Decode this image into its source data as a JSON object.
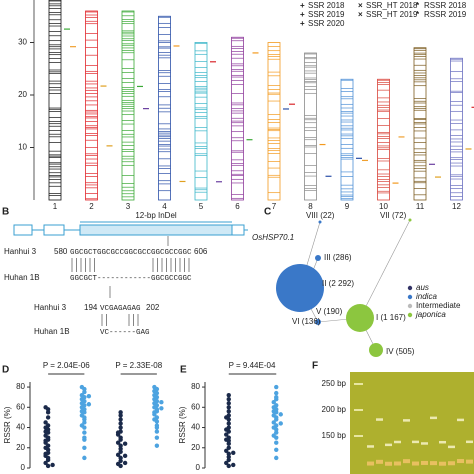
{
  "panel_a": {
    "label": "A",
    "yticks": [
      30,
      20,
      10
    ],
    "chromosomes": [
      "1",
      "2",
      "3",
      "4",
      "5",
      "6",
      "7",
      "8",
      "9",
      "10",
      "11",
      "12"
    ],
    "chromosome_lengths": [
      43,
      36,
      36,
      35,
      30,
      31,
      30,
      28,
      23,
      23,
      29,
      27
    ],
    "chromosome_colors": [
      "#111111",
      "#e0262b",
      "#3aa935",
      "#2a4fa8",
      "#3bb6c9",
      "#8f3b9c",
      "#f39a1f",
      "#8a8a8a",
      "#4d8fd6",
      "#d9443a",
      "#7a5a1e",
      "#6a6fc0"
    ],
    "legend": [
      {
        "name": "SSR 2018",
        "color": "#3aa935",
        "symbol": "+"
      },
      {
        "name": "SSR_HT 2018",
        "color": "#6a3fa0",
        "symbol": "×"
      },
      {
        "name": "RSSR 2018",
        "color": "#f0a030",
        "symbol": "*"
      },
      {
        "name": "SSR 2019",
        "color": "#2a4fa8",
        "symbol": "+"
      },
      {
        "name": "SSR_HT 2019",
        "color": "#f39a1f",
        "symbol": "×"
      },
      {
        "name": "RSSR 2019",
        "color": "#d9262b",
        "symbol": "*"
      },
      {
        "name": "SSR 2020",
        "color": "#e0a020",
        "symbol": "+"
      }
    ]
  },
  "panel_b": {
    "label": "B",
    "indel": "12-bp InDel",
    "gene": "OsHSP70.1",
    "seq1": {
      "name": "Hanhui 3",
      "start": "580",
      "seq": "GGCGCTGGCGCCGGCGCCGGCGCCGGC",
      "end": "606"
    },
    "seq2": {
      "name": "Huhan 1B",
      "seq": "GGCGCT------------GGCGCCGGC"
    },
    "prot1": {
      "name": "Hanhui 3",
      "start": "194",
      "seq": "VCGAGAGAG",
      "end": "202"
    },
    "prot2": {
      "name": "Huhan 1B",
      "seq": "VC------GAG"
    }
  },
  "panel_c": {
    "label": "C",
    "nodes": [
      "VIII (22)",
      "VII (72)",
      "III (286)",
      "II (2 292)",
      "V (190)",
      "VI (136)",
      "I (1 167)",
      "IV (505)"
    ],
    "legend": [
      {
        "name": "aus",
        "color": "#333366"
      },
      {
        "name": "indica",
        "color": "#3a78c8"
      },
      {
        "name": "Intermediate",
        "color": "#bbbbbb"
      },
      {
        "name": "japonica",
        "color": "#8cc63f"
      }
    ]
  },
  "panel_d": {
    "label": "D",
    "ylabel": "RSSR (%)",
    "ylim": [
      0,
      85
    ],
    "yticks": [
      0,
      20,
      40,
      60,
      80
    ],
    "pvalues": [
      "P = 2.04E-06",
      "P = 2.33E-08"
    ],
    "groups": [
      {
        "color": "#1b2a4a",
        "values": [
          2,
          5,
          8,
          10,
          12,
          15,
          18,
          20,
          22,
          25,
          28,
          30,
          32,
          35,
          38,
          40,
          42,
          45,
          50,
          55,
          58,
          60,
          3,
          14,
          27,
          36
        ]
      },
      {
        "color": "#4da3e0",
        "values": [
          20,
          28,
          35,
          40,
          45,
          48,
          50,
          52,
          55,
          58,
          60,
          62,
          64,
          66,
          68,
          70,
          72,
          75,
          78,
          80,
          10,
          42,
          56,
          63,
          71,
          30
        ]
      },
      {
        "color": "#1b2a4a",
        "values": [
          2,
          4,
          7,
          10,
          13,
          16,
          19,
          22,
          25,
          28,
          30,
          33,
          36,
          40,
          44,
          48,
          52,
          55,
          5,
          12,
          24,
          35
        ]
      },
      {
        "color": "#4da3e0",
        "values": [
          22,
          30,
          36,
          42,
          46,
          50,
          53,
          56,
          58,
          60,
          62,
          64,
          66,
          68,
          70,
          72,
          74,
          76,
          78,
          80,
          40,
          55,
          65,
          48,
          59
        ]
      }
    ]
  },
  "panel_e": {
    "label": "E",
    "ylabel": "RSSR (%)",
    "ylim": [
      0,
      85
    ],
    "yticks": [
      0,
      20,
      40,
      60,
      80
    ],
    "pvalue": "P = 9.44E-04",
    "groups": [
      {
        "color": "#1b2a4a",
        "values": [
          2,
          5,
          8,
          11,
          14,
          17,
          20,
          24,
          27,
          30,
          33,
          36,
          40,
          44,
          48,
          52,
          56,
          60,
          64,
          68,
          72,
          3,
          15,
          28,
          38,
          50
        ]
      },
      {
        "color": "#4da3e0",
        "values": [
          10,
          18,
          25,
          30,
          35,
          38,
          42,
          45,
          48,
          50,
          52,
          55,
          58,
          60,
          62,
          65,
          68,
          70,
          74,
          80,
          32,
          44,
          56,
          40,
          53
        ]
      }
    ]
  },
  "panel_f": {
    "label": "F",
    "markers": [
      "250 bp",
      "200 bp",
      "150 bp"
    ]
  }
}
